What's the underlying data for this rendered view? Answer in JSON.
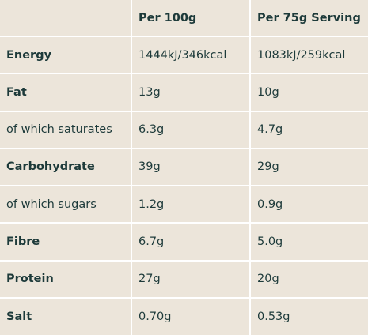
{
  "table": {
    "header": [
      "Per 100g",
      "Per 75g Serving"
    ],
    "rows": [
      [
        "Energy",
        "1444kJ/346kcal",
        "1083kJ/259kcal"
      ],
      [
        "Fat",
        "13g",
        "10g"
      ],
      [
        "of which saturates",
        "6.3g",
        "4.7g"
      ],
      [
        "Carbohydrate",
        "39g",
        "29g"
      ],
      [
        "of which sugars",
        "1.2g",
        "0.9g"
      ],
      [
        "Fibre",
        "6.7g",
        "5.0g"
      ],
      [
        "Protein",
        "27g",
        "20g"
      ],
      [
        "Salt",
        "0.70g",
        "0.53g"
      ]
    ]
  }
}
